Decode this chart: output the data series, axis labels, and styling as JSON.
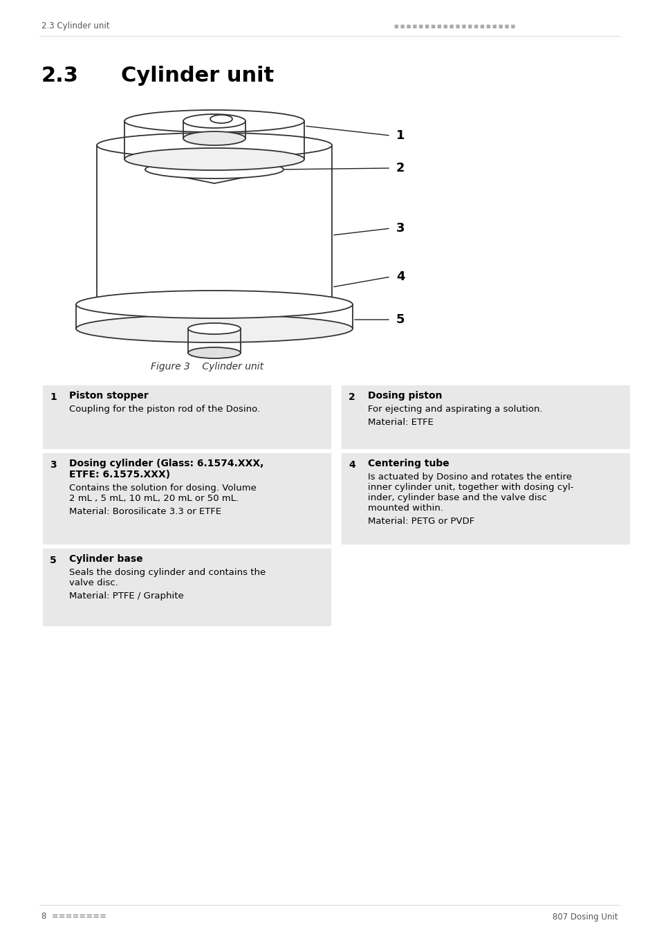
{
  "page_title": "2.3 Cylinder unit",
  "header_left": "2.3 Cylinder unit",
  "header_right": "====================",
  "section_number": "2.3",
  "section_title": "Cylinder unit",
  "figure_caption": "Figure 3    Cylinder unit",
  "footer_left": "8  ========",
  "footer_right": "807 Dosing Unit",
  "bg_color": "#ffffff",
  "table_bg": "#e8e8e8",
  "table_border": "#cccccc",
  "items": [
    {
      "number": "1",
      "title": "Piston stopper",
      "description": "Coupling for the piston rod of the Dosino.",
      "material": ""
    },
    {
      "number": "2",
      "title": "Dosing piston",
      "description": "For ejecting and aspirating a solution.",
      "material": "Material: ETFE"
    },
    {
      "number": "3",
      "title": "Dosing cylinder (Glass: 6.1574.XXX,\nETFE: 6.1575.XXX)",
      "description": "Contains the solution for dosing. Volume\n2 mL , 5 mL, 10 mL, 20 mL or 50 mL.",
      "material": "Material: Borosilicate 3.3 or ETFE"
    },
    {
      "number": "4",
      "title": "Centering tube",
      "description": "Is actuated by Dosino and rotates the entire\ninner cylinder unit, together with dosing cyl-\ninder, cylinder base and the valve disc\nmounted within.",
      "material": "Material: PETG or PVDF"
    },
    {
      "number": "5",
      "title": "Cylinder base",
      "description": "Seals the dosing cylinder and contains the\nvalve disc.",
      "material": "Material: PTFE / Graphite"
    }
  ]
}
